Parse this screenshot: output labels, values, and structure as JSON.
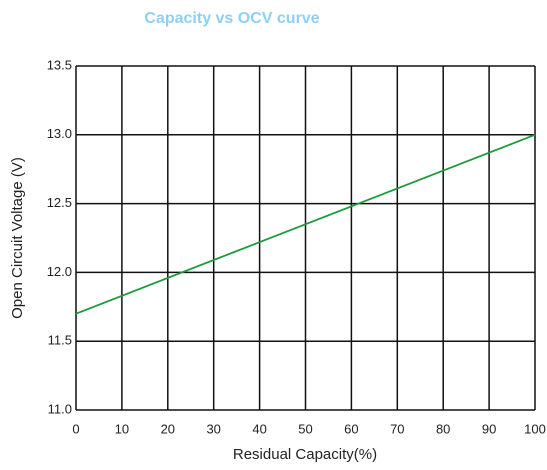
{
  "chart_data": {
    "type": "line",
    "title": "Capacity vs OCV curve",
    "x_label": "Residual Capacity(%)",
    "y_label": "Open Circuit Voltage (V)",
    "x": [
      0,
      100
    ],
    "series": [
      {
        "name": null,
        "color": "#1a9a3c",
        "values": [
          11.7,
          13.0
        ]
      }
    ],
    "xlim": [
      0,
      100
    ],
    "xticks": [
      0,
      10,
      20,
      30,
      40,
      50,
      60,
      70,
      80,
      90,
      100
    ],
    "ylim": [
      11.0,
      13.5
    ],
    "yticks": [
      {
        "value": 11,
        "label": "11.0"
      },
      11.5,
      {
        "value": 12,
        "label": "12.0"
      },
      12.5,
      {
        "value": 13,
        "label": "13.0"
      },
      13.5
    ],
    "grid": true
  }
}
